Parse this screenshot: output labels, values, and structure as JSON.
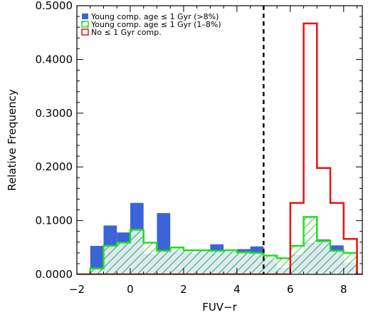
{
  "chart_data": {
    "type": "bar",
    "xlabel": "FUV−r",
    "ylabel": "Relative Frequency",
    "xlim": [
      -2,
      8.7
    ],
    "ylim": [
      0,
      0.5
    ],
    "bin_width": 0.5,
    "x_ticks": [
      {
        "value": -2,
        "label": "−2"
      },
      {
        "value": 0,
        "label": "0"
      },
      {
        "value": 2,
        "label": "2"
      },
      {
        "value": 4,
        "label": "4"
      },
      {
        "value": 6,
        "label": "6"
      },
      {
        "value": 8,
        "label": "8"
      }
    ],
    "y_ticks": [
      {
        "value": 0,
        "label": "0.0000"
      },
      {
        "value": 0.1,
        "label": "0.1000"
      },
      {
        "value": 0.2,
        "label": "0.2000"
      },
      {
        "value": 0.3,
        "label": "0.3000"
      },
      {
        "value": 0.4,
        "label": "0.4000"
      },
      {
        "value": 0.5,
        "label": "0.5000"
      }
    ],
    "vline_x": 5,
    "series": [
      {
        "name": "Young comp. age ≤ 1 Gyr (>8%)",
        "style": "filled",
        "color": "#3a64d8",
        "bins": [
          [
            -1.5,
            0.053
          ],
          [
            -1.0,
            0.091
          ],
          [
            -0.5,
            0.078
          ],
          [
            0.0,
            0.133
          ],
          [
            0.5,
            0.039
          ],
          [
            1.0,
            0.114
          ],
          [
            1.5,
            0.043
          ],
          [
            2.0,
            0.04
          ],
          [
            2.5,
            0.043
          ],
          [
            3.0,
            0.056
          ],
          [
            3.5,
            0.042
          ],
          [
            4.0,
            0.047
          ],
          [
            4.5,
            0.052
          ],
          [
            5.0,
            0.027
          ],
          [
            5.5,
            0.012
          ],
          [
            6.0,
            0.037
          ],
          [
            6.5,
            0.059
          ],
          [
            7.0,
            0.065
          ],
          [
            7.5,
            0.054
          ],
          [
            8.0,
            0.022
          ]
        ]
      },
      {
        "name": "Young comp. age ≤ 1 Gyr (1–8%)",
        "style": "hatched",
        "color": "#22dd22",
        "bins": [
          [
            -2.0,
            0.0
          ],
          [
            -1.5,
            0.011
          ],
          [
            -1.0,
            0.053
          ],
          [
            -0.5,
            0.059
          ],
          [
            0.0,
            0.083
          ],
          [
            0.5,
            0.059
          ],
          [
            1.0,
            0.044
          ],
          [
            1.5,
            0.05
          ],
          [
            2.0,
            0.045
          ],
          [
            2.5,
            0.045
          ],
          [
            3.0,
            0.044
          ],
          [
            3.5,
            0.045
          ],
          [
            4.0,
            0.041
          ],
          [
            4.5,
            0.04
          ],
          [
            5.0,
            0.035
          ],
          [
            5.5,
            0.03
          ],
          [
            6.0,
            0.053
          ],
          [
            6.5,
            0.107
          ],
          [
            7.0,
            0.062
          ],
          [
            7.5,
            0.044
          ],
          [
            8.0,
            0.04
          ]
        ]
      },
      {
        "name": "No ≤ 1 Gyr comp.",
        "style": "outline",
        "color": "#ee1111",
        "bins": [
          [
            6.0,
            0.133
          ],
          [
            6.5,
            0.467
          ],
          [
            7.0,
            0.198
          ],
          [
            7.5,
            0.133
          ],
          [
            8.0,
            0.066
          ]
        ]
      }
    ]
  }
}
